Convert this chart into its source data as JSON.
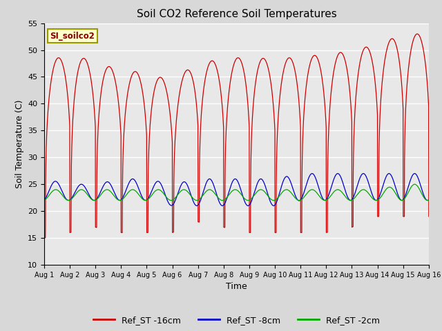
{
  "title": "Soil CO2 Reference Soil Temperatures",
  "xlabel": "Time",
  "ylabel": "Soil Temperature (C)",
  "ylim": [
    10,
    55
  ],
  "yticks": [
    10,
    15,
    20,
    25,
    30,
    35,
    40,
    45,
    50,
    55
  ],
  "plot_bg_color": "#e8e8e8",
  "fig_bg_color": "#d8d8d8",
  "label_box_text": "SI_soilco2",
  "label_box_color": "#ffffcc",
  "label_box_edge": "#999900",
  "legend_entries": [
    "Ref_ST -16cm",
    "Ref_ST -8cm",
    "Ref_ST -2cm"
  ],
  "line_colors": [
    "#cc0000",
    "#0000cc",
    "#00aa00"
  ],
  "num_days": 15,
  "red_peaks": [
    48,
    49,
    48,
    46,
    46,
    44,
    48,
    48,
    49,
    48,
    49,
    49,
    50,
    51,
    53
  ],
  "red_troughs": [
    15,
    16,
    17,
    16,
    16,
    16,
    18,
    17,
    16,
    16,
    16,
    16,
    17,
    19,
    19
  ],
  "blue_peaks": [
    26,
    25,
    25,
    26,
    26,
    25,
    26,
    26,
    26,
    26,
    27,
    27,
    27,
    27,
    27
  ],
  "blue_troughs": [
    22,
    22,
    22,
    22,
    22,
    21,
    21,
    21,
    21,
    21,
    22,
    22,
    22,
    22,
    22
  ],
  "green_peaks": [
    24,
    24,
    24,
    24,
    24,
    24,
    24,
    24,
    24,
    24,
    24,
    24,
    24,
    24,
    25
  ],
  "green_troughs": [
    22,
    22,
    22,
    22,
    22,
    22,
    22,
    22,
    22,
    22,
    22,
    22,
    22,
    22,
    22
  ],
  "tick_labels": [
    "Aug 1",
    "Aug 2",
    "Aug 3",
    "Aug 4",
    "Aug 5",
    "Aug 6",
    "Aug 7",
    "Aug 8",
    "Aug 9",
    "Aug 10",
    "Aug 11",
    "Aug 12",
    "Aug 13",
    "Aug 14",
    "Aug 15",
    "Aug 16"
  ]
}
